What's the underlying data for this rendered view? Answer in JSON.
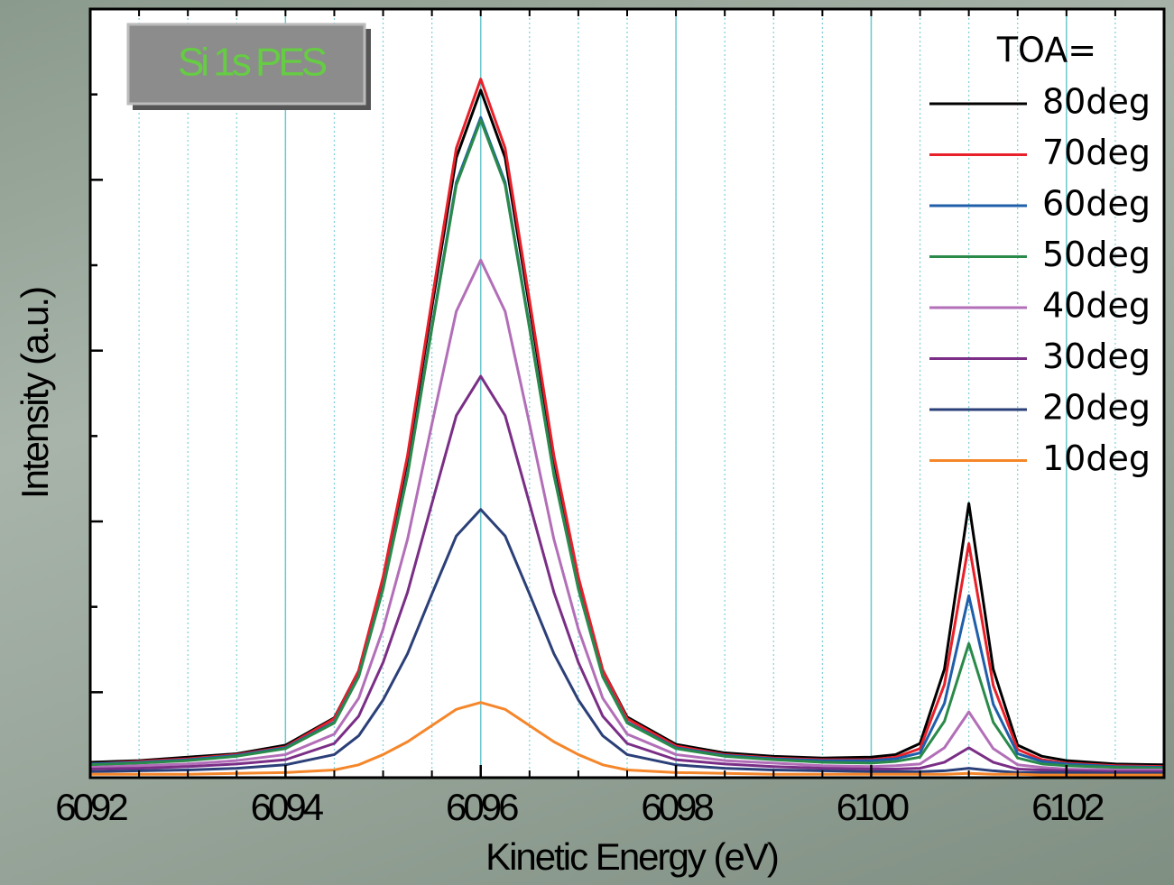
{
  "chart_data": {
    "type": "line",
    "title": "Si 1s PES",
    "x_label": "Kinetic Energy (eV)",
    "y_label": "Intensity (a.u.)",
    "legend_title": "TOA=",
    "legend_position": "upper right",
    "grid": true,
    "xlim": [
      6092,
      6103
    ],
    "xticks": [
      6092,
      6094,
      6096,
      6098,
      6100,
      6102
    ],
    "ylim": [
      0,
      9
    ],
    "yticks": [
      1,
      2,
      3,
      4,
      5,
      6,
      7,
      8
    ],
    "x": [
      6092,
      6092.5,
      6093,
      6093.5,
      6094,
      6094.5,
      6094.75,
      6095,
      6095.25,
      6095.5,
      6095.75,
      6096,
      6096.25,
      6096.5,
      6096.75,
      6097,
      6097.25,
      6097.5,
      6098,
      6098.5,
      6099,
      6099.5,
      6100,
      6100.25,
      6100.5,
      6100.75,
      6101,
      6101.25,
      6101.5,
      6101.75,
      6102,
      6102.5,
      6103
    ],
    "series": [
      {
        "name": "80deg",
        "color": "#000000",
        "values": [
          0.18,
          0.2,
          0.24,
          0.28,
          0.38,
          0.7,
          1.25,
          2.33,
          3.72,
          5.51,
          7.26,
          8.05,
          7.26,
          5.51,
          3.72,
          2.33,
          1.26,
          0.71,
          0.39,
          0.29,
          0.25,
          0.23,
          0.24,
          0.27,
          0.4,
          1.27,
          3.21,
          1.27,
          0.38,
          0.25,
          0.2,
          0.16,
          0.15
        ]
      },
      {
        "name": "70deg",
        "color": "#e8202a",
        "values": [
          0.16,
          0.19,
          0.22,
          0.27,
          0.36,
          0.69,
          1.25,
          2.35,
          3.77,
          5.59,
          7.37,
          8.18,
          7.37,
          5.59,
          3.77,
          2.35,
          1.26,
          0.69,
          0.37,
          0.27,
          0.23,
          0.21,
          0.21,
          0.24,
          0.34,
          1.09,
          2.74,
          1.08,
          0.33,
          0.21,
          0.17,
          0.14,
          0.13
        ]
      },
      {
        "name": "60deg",
        "color": "#1f5faa",
        "values": [
          0.16,
          0.18,
          0.21,
          0.26,
          0.35,
          0.65,
          1.19,
          2.22,
          3.56,
          5.28,
          6.97,
          7.73,
          6.97,
          5.28,
          3.56,
          2.22,
          1.19,
          0.65,
          0.35,
          0.26,
          0.22,
          0.2,
          0.2,
          0.22,
          0.29,
          0.87,
          2.13,
          0.86,
          0.28,
          0.19,
          0.16,
          0.13,
          0.12
        ]
      },
      {
        "name": "50deg",
        "color": "#2a8a4a",
        "values": [
          0.15,
          0.17,
          0.2,
          0.25,
          0.34,
          0.64,
          1.18,
          2.21,
          3.54,
          5.26,
          6.94,
          7.7,
          6.94,
          5.26,
          3.54,
          2.21,
          1.18,
          0.64,
          0.34,
          0.25,
          0.21,
          0.18,
          0.17,
          0.19,
          0.24,
          0.66,
          1.57,
          0.65,
          0.23,
          0.16,
          0.14,
          0.12,
          0.11
        ]
      },
      {
        "name": "40deg",
        "color": "#b26fb8",
        "values": [
          0.12,
          0.14,
          0.16,
          0.2,
          0.27,
          0.51,
          0.93,
          1.74,
          2.79,
          4.14,
          5.46,
          6.06,
          5.46,
          4.14,
          2.79,
          1.74,
          0.93,
          0.51,
          0.27,
          0.2,
          0.17,
          0.14,
          0.13,
          0.14,
          0.16,
          0.35,
          0.77,
          0.34,
          0.15,
          0.12,
          0.1,
          0.09,
          0.09
        ]
      },
      {
        "name": "30deg",
        "color": "#7a2e86",
        "values": [
          0.1,
          0.11,
          0.13,
          0.16,
          0.21,
          0.4,
          0.72,
          1.35,
          2.17,
          3.21,
          4.24,
          4.7,
          4.24,
          3.21,
          2.17,
          1.35,
          0.72,
          0.4,
          0.21,
          0.16,
          0.13,
          0.11,
          0.1,
          0.1,
          0.11,
          0.18,
          0.35,
          0.18,
          0.1,
          0.09,
          0.08,
          0.07,
          0.07
        ]
      },
      {
        "name": "20deg",
        "color": "#2b3f78",
        "values": [
          0.07,
          0.08,
          0.09,
          0.11,
          0.15,
          0.27,
          0.49,
          0.91,
          1.45,
          2.15,
          2.83,
          3.14,
          2.83,
          2.15,
          1.45,
          0.91,
          0.49,
          0.27,
          0.15,
          0.11,
          0.09,
          0.08,
          0.07,
          0.07,
          0.07,
          0.08,
          0.11,
          0.08,
          0.06,
          0.06,
          0.06,
          0.05,
          0.05
        ]
      },
      {
        "name": "10deg",
        "color": "#f5862a",
        "values": [
          0.04,
          0.04,
          0.04,
          0.05,
          0.06,
          0.09,
          0.15,
          0.27,
          0.42,
          0.61,
          0.8,
          0.88,
          0.8,
          0.61,
          0.42,
          0.27,
          0.15,
          0.09,
          0.06,
          0.05,
          0.04,
          0.04,
          0.04,
          0.04,
          0.04,
          0.04,
          0.05,
          0.04,
          0.04,
          0.03,
          0.03,
          0.03,
          0.03
        ]
      }
    ]
  }
}
